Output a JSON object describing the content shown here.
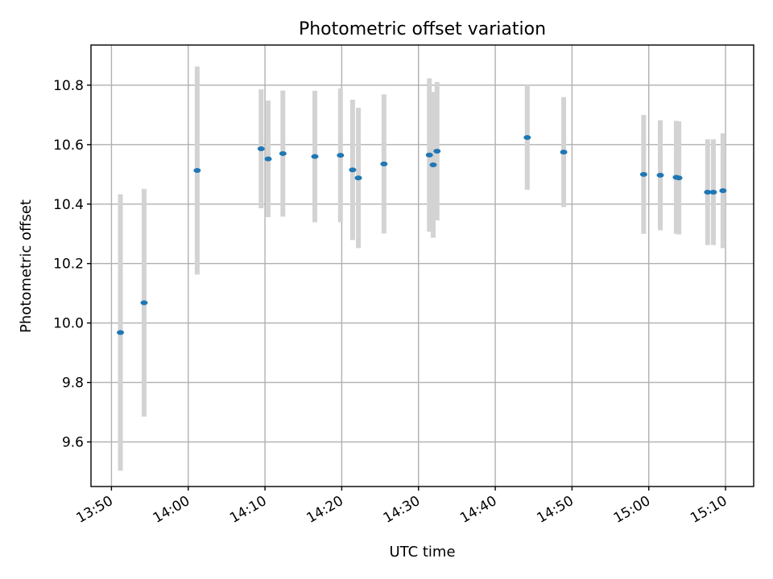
{
  "chart_data": {
    "type": "scatter",
    "title": "Photometric offset variation",
    "xlabel": "UTC time",
    "ylabel": "Photometric offset",
    "x_type": "time",
    "xlim": [
      "13:47:20",
      "15:13:40"
    ],
    "ylim": [
      9.45,
      10.935
    ],
    "x_ticks": [
      "13:50",
      "14:00",
      "14:10",
      "14:20",
      "14:30",
      "14:40",
      "14:50",
      "15:00",
      "15:10"
    ],
    "y_ticks": [
      9.6,
      9.8,
      10.0,
      10.2,
      10.4,
      10.6,
      10.8
    ],
    "y_tick_labels": [
      "9.6",
      "9.8",
      "10.0",
      "10.2",
      "10.4",
      "10.6",
      "10.8"
    ],
    "grid": true,
    "error_bars": true,
    "point_color": "#1f77b4",
    "errorbar_color": "#d3d3d3",
    "series": [
      {
        "points": [
          {
            "x": "13:51:10",
            "y": 9.968,
            "yerr": 0.465
          },
          {
            "x": "13:54:15",
            "y": 10.068,
            "yerr": 0.383
          },
          {
            "x": "14:01:10",
            "y": 10.513,
            "yerr": 0.35
          },
          {
            "x": "14:09:30",
            "y": 10.586,
            "yerr": 0.2
          },
          {
            "x": "14:10:25",
            "y": 10.552,
            "yerr": 0.196
          },
          {
            "x": "14:12:20",
            "y": 10.57,
            "yerr": 0.212
          },
          {
            "x": "14:16:30",
            "y": 10.56,
            "yerr": 0.221
          },
          {
            "x": "14:19:50",
            "y": 10.564,
            "yerr": 0.225
          },
          {
            "x": "14:21:25",
            "y": 10.515,
            "yerr": 0.236
          },
          {
            "x": "14:22:10",
            "y": 10.488,
            "yerr": 0.236
          },
          {
            "x": "14:25:30",
            "y": 10.535,
            "yerr": 0.234
          },
          {
            "x": "14:31:25",
            "y": 10.565,
            "yerr": 0.258
          },
          {
            "x": "14:31:55",
            "y": 10.532,
            "yerr": 0.245
          },
          {
            "x": "14:32:25",
            "y": 10.578,
            "yerr": 0.233
          },
          {
            "x": "14:44:10",
            "y": 10.624,
            "yerr": 0.176
          },
          {
            "x": "14:48:55",
            "y": 10.575,
            "yerr": 0.185
          },
          {
            "x": "14:59:20",
            "y": 10.5,
            "yerr": 0.2
          },
          {
            "x": "15:01:30",
            "y": 10.497,
            "yerr": 0.185
          },
          {
            "x": "15:03:35",
            "y": 10.49,
            "yerr": 0.19
          },
          {
            "x": "15:03:55",
            "y": 10.488,
            "yerr": 0.19
          },
          {
            "x": "15:07:40",
            "y": 10.44,
            "yerr": 0.178
          },
          {
            "x": "15:08:25",
            "y": 10.44,
            "yerr": 0.178
          },
          {
            "x": "15:09:40",
            "y": 10.445,
            "yerr": 0.193
          }
        ]
      }
    ]
  }
}
